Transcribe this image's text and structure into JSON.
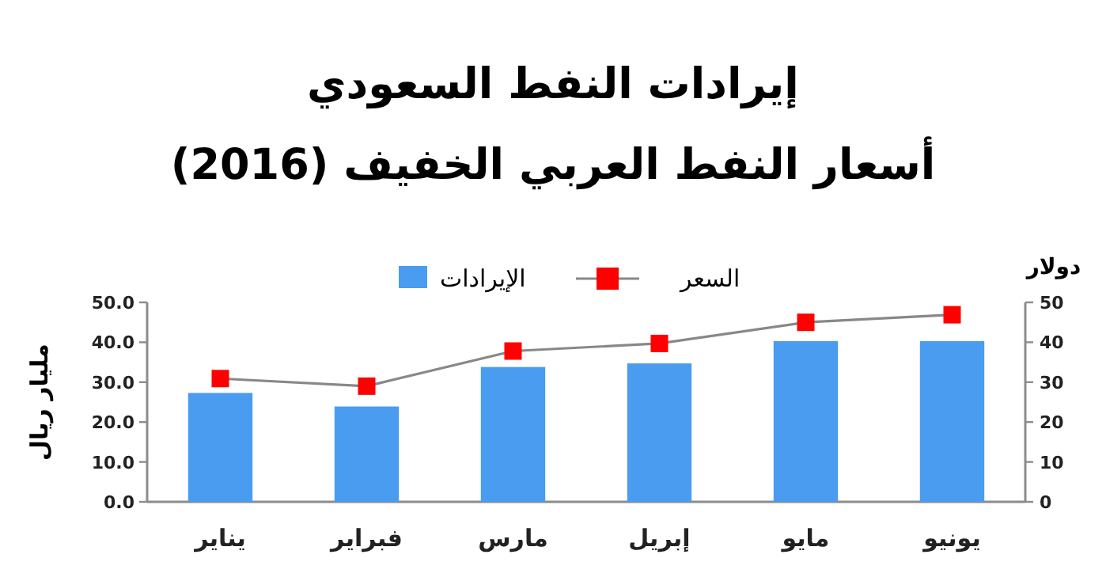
{
  "chart_data": {
    "type": "bar",
    "title": "إيرادات النفط السعودي",
    "subtitle": "أسعار النفط العربي الخفيف (2016)",
    "ylabel": "مليار ريال",
    "y2label": "دولار",
    "categories": [
      "يناير",
      "فبراير",
      "مارس",
      "إبريل",
      "مايو",
      "يونيو"
    ],
    "series": [
      {
        "name": "الإيرادات",
        "color": "#4a9cf0",
        "values": [
          27.3,
          23.9,
          33.8,
          34.7,
          40.3,
          40.3
        ]
      },
      {
        "name": "السعر",
        "type": "line",
        "axis": "y2",
        "marker": "square",
        "color": "#ff0000",
        "values": [
          30.9,
          29.0,
          37.8,
          39.7,
          45.0,
          46.9
        ]
      }
    ],
    "ylim": [
      0,
      50
    ],
    "yticks": [
      {
        "value": 0,
        "label": "0.0"
      },
      {
        "value": 10,
        "label": "10.0"
      },
      {
        "value": 20,
        "label": "20.0"
      },
      {
        "value": 30,
        "label": "30.0"
      },
      {
        "value": 40,
        "label": "40.0"
      },
      {
        "value": 50,
        "label": "50.0"
      }
    ],
    "y2lim": [
      0,
      50
    ],
    "y2ticks": [
      0,
      10,
      20,
      30,
      40,
      50
    ],
    "legend": "top"
  }
}
